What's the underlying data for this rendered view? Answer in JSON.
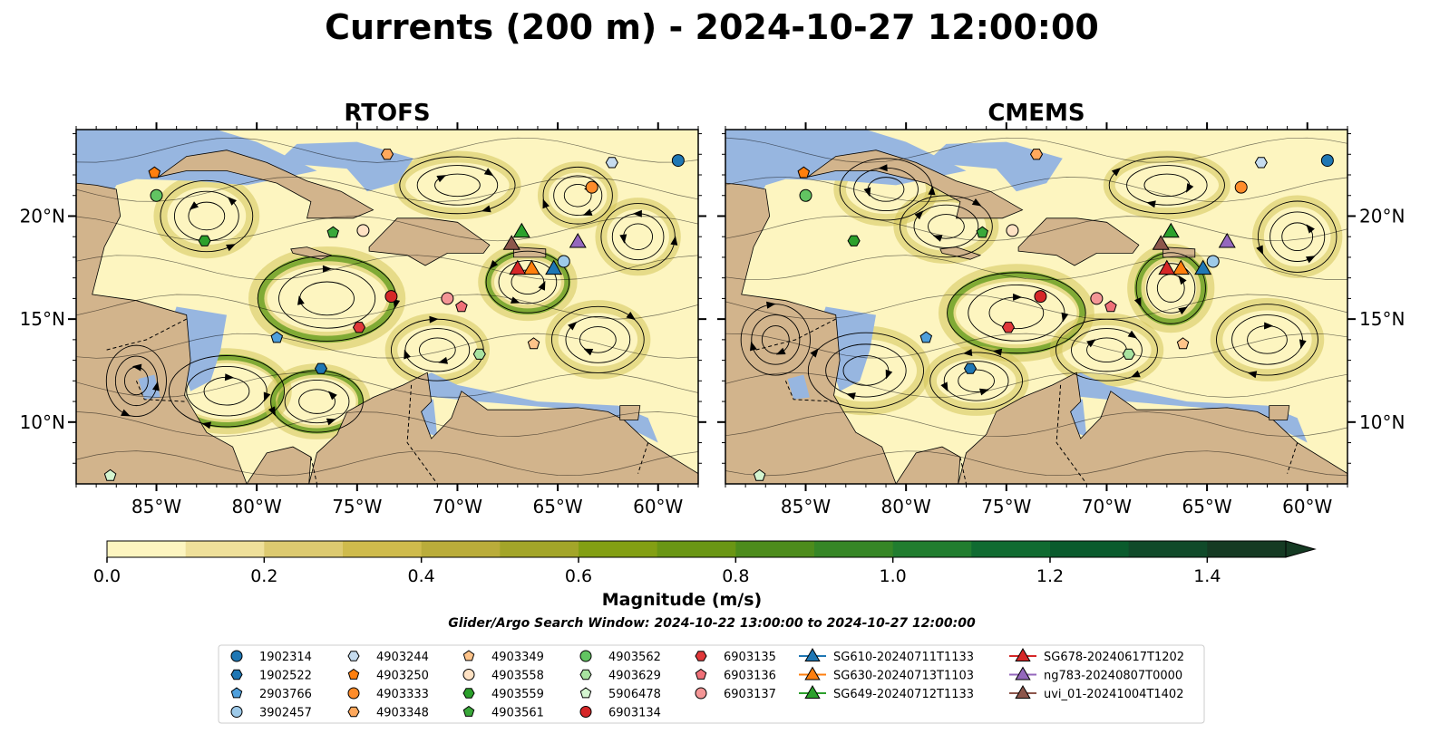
{
  "title": "Currents (200 m) - 2024-10-27 12:00:00",
  "panels": [
    {
      "id": "rtofs",
      "title": "RTOFS"
    },
    {
      "id": "cmems",
      "title": "CMEMS"
    }
  ],
  "map": {
    "lon_range": [
      -89,
      -58
    ],
    "lat_range": [
      7,
      24.2
    ],
    "lon_ticks": [
      {
        "value": -85,
        "label": "85°W"
      },
      {
        "value": -80,
        "label": "80°W"
      },
      {
        "value": -75,
        "label": "75°W"
      },
      {
        "value": -70,
        "label": "70°W"
      },
      {
        "value": -65,
        "label": "65°W"
      },
      {
        "value": -60,
        "label": "60°W"
      }
    ],
    "lat_ticks": [
      {
        "value": 20,
        "label": "20°N"
      },
      {
        "value": 15,
        "label": "15°N"
      },
      {
        "value": 10,
        "label": "10°N"
      }
    ],
    "colors": {
      "ocean": "#97b6e0",
      "land": "#d2b48c",
      "water_low": "#fdf5c0",
      "water_mid": "#d4c45a",
      "water_high": "#5e9a1a"
    }
  },
  "colorbar": {
    "label": "Magnitude (m/s)",
    "min": 0,
    "max": 1.5,
    "ticks": [
      {
        "value": 0.0,
        "label": "0.0"
      },
      {
        "value": 0.2,
        "label": "0.2"
      },
      {
        "value": 0.4,
        "label": "0.4"
      },
      {
        "value": 0.6,
        "label": "0.6"
      },
      {
        "value": 0.8,
        "label": "0.8"
      },
      {
        "value": 1.0,
        "label": "1.0"
      },
      {
        "value": 1.2,
        "label": "1.2"
      },
      {
        "value": 1.4,
        "label": "1.4"
      }
    ],
    "bands": [
      "#fdf5c0",
      "#efe09a",
      "#ddca70",
      "#cfbb4c",
      "#baac3a",
      "#a3a529",
      "#839f13",
      "#6a9614",
      "#4d8c1c",
      "#368626",
      "#217d2f",
      "#106b31",
      "#0a5b2d",
      "#104a2a",
      "#153a23"
    ]
  },
  "search_window": "Glider/Argo Search Window: 2024-10-22 13:00:00 to 2024-10-27 12:00:00",
  "legend": {
    "columns": [
      [
        {
          "label": "1902314",
          "marker": "circle",
          "color": "#1f77b4"
        },
        {
          "label": "1902522",
          "marker": "hexagon",
          "color": "#1f77b4"
        },
        {
          "label": "2903766",
          "marker": "pentagon",
          "color": "#4e9fdc"
        },
        {
          "label": "3902457",
          "marker": "circle",
          "color": "#9ecae9"
        }
      ],
      [
        {
          "label": "4903244",
          "marker": "hexagon",
          "color": "#c6dcef"
        },
        {
          "label": "4903250",
          "marker": "pentagon",
          "color": "#ff7f0e"
        },
        {
          "label": "4903333",
          "marker": "circle",
          "color": "#ff8c2a"
        },
        {
          "label": "4903348",
          "marker": "hexagon",
          "color": "#ffa85c"
        }
      ],
      [
        {
          "label": "4903349",
          "marker": "pentagon",
          "color": "#ffc48a"
        },
        {
          "label": "4903558",
          "marker": "circle",
          "color": "#ffe2c4"
        },
        {
          "label": "4903559",
          "marker": "hexagon",
          "color": "#2ca02c"
        },
        {
          "label": "4903561",
          "marker": "pentagon",
          "color": "#3aa83a"
        }
      ],
      [
        {
          "label": "4903562",
          "marker": "circle",
          "color": "#62c462"
        },
        {
          "label": "4903629",
          "marker": "hexagon",
          "color": "#a8e3a0"
        },
        {
          "label": "5906478",
          "marker": "pentagon",
          "color": "#d4f5d0"
        },
        {
          "label": "6903134",
          "marker": "circle",
          "color": "#d62728"
        }
      ],
      [
        {
          "label": "6903135",
          "marker": "hexagon",
          "color": "#e0383a"
        },
        {
          "label": "6903136",
          "marker": "pentagon",
          "color": "#f07078"
        },
        {
          "label": "6903137",
          "marker": "circle",
          "color": "#f49696"
        }
      ],
      [
        {
          "label": "SG610-20240711T1133",
          "marker": "triangle",
          "color": "#1f77b4"
        },
        {
          "label": "SG630-20240713T1103",
          "marker": "triangle",
          "color": "#ff7f0e"
        },
        {
          "label": "SG649-20240712T1133",
          "marker": "triangle",
          "color": "#2ca02c"
        }
      ],
      [
        {
          "label": "SG678-20240617T1202",
          "marker": "triangle",
          "color": "#d62728"
        },
        {
          "label": "ng783-20240807T0000",
          "marker": "triangle",
          "color": "#9467bd"
        },
        {
          "label": "uvi_01-20241004T1402",
          "marker": "triangle",
          "color": "#8c564b"
        }
      ]
    ]
  },
  "markers": [
    {
      "id": "1902314",
      "lon": -59.0,
      "lat": 22.7
    },
    {
      "id": "1902522",
      "lon": -76.8,
      "lat": 12.6
    },
    {
      "id": "2903766",
      "lon": -79.0,
      "lat": 14.1
    },
    {
      "id": "3902457",
      "lon": -64.7,
      "lat": 17.8
    },
    {
      "id": "4903244",
      "lon": -62.3,
      "lat": 22.6
    },
    {
      "id": "4903250",
      "lon": -85.1,
      "lat": 22.1
    },
    {
      "id": "4903333",
      "lon": -63.3,
      "lat": 21.4
    },
    {
      "id": "4903348",
      "lon": -73.5,
      "lat": 23.0
    },
    {
      "id": "4903349",
      "lon": -66.2,
      "lat": 13.8
    },
    {
      "id": "4903558",
      "lon": -74.7,
      "lat": 19.3
    },
    {
      "id": "4903559",
      "lon": -82.6,
      "lat": 18.8
    },
    {
      "id": "4903561",
      "lon": -76.2,
      "lat": 19.2
    },
    {
      "id": "4903562",
      "lon": -85.0,
      "lat": 21.0
    },
    {
      "id": "4903629",
      "lon": -68.9,
      "lat": 13.3
    },
    {
      "id": "5906478",
      "lon": -87.3,
      "lat": 7.4
    },
    {
      "id": "6903134",
      "lon": -73.3,
      "lat": 16.1
    },
    {
      "id": "6903135",
      "lon": -74.9,
      "lat": 14.6
    },
    {
      "id": "6903136",
      "lon": -69.8,
      "lat": 15.6
    },
    {
      "id": "6903137",
      "lon": -70.5,
      "lat": 16.0
    },
    {
      "id": "SG610-20240711T1133",
      "lon": -65.2,
      "lat": 17.4
    },
    {
      "id": "SG630-20240713T1103",
      "lon": -66.3,
      "lat": 17.4
    },
    {
      "id": "SG649-20240712T1133",
      "lon": -66.8,
      "lat": 19.2
    },
    {
      "id": "SG678-20240617T1202",
      "lon": -67.0,
      "lat": 17.4
    },
    {
      "id": "ng783-20240807T0000",
      "lon": -64.0,
      "lat": 18.7
    },
    {
      "id": "uvi_01-20241004T1402",
      "lon": -67.3,
      "lat": 18.6
    }
  ]
}
